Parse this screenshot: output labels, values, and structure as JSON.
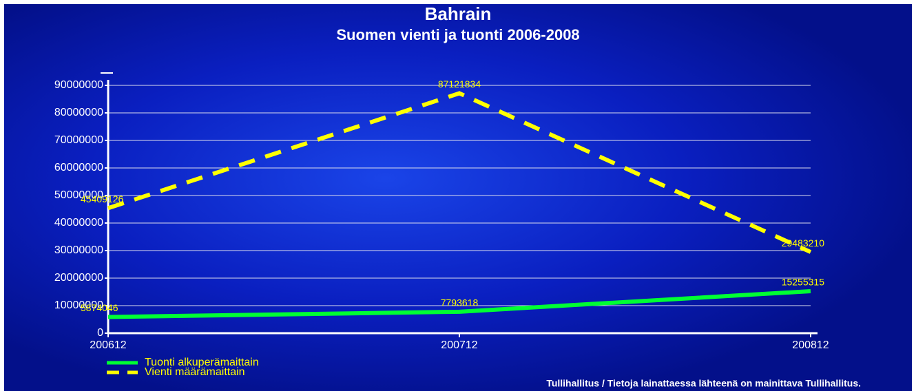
{
  "chart_data": {
    "type": "line",
    "title": "Bahrain",
    "subtitle": "Suomen vienti ja tuonti 2006-2008",
    "categories": [
      "200612",
      "200712",
      "200812"
    ],
    "series": [
      {
        "name": "Tuonti alkuperämaittain",
        "color": "#00ff33",
        "dashed": false,
        "values": [
          5874046,
          7793618,
          15255315
        ]
      },
      {
        "name": "Vienti määrämaittain",
        "color": "#ffff00",
        "dashed": true,
        "values": [
          45409126,
          87121834,
          29483210
        ]
      }
    ],
    "ylim": [
      0,
      90000000
    ],
    "yticks": [
      0,
      10000000,
      20000000,
      30000000,
      40000000,
      50000000,
      60000000,
      70000000,
      80000000,
      90000000
    ],
    "grid": true,
    "source": "Tullihallitus / Tietoja lainattaessa lähteenä on mainittava Tullihallitus."
  }
}
